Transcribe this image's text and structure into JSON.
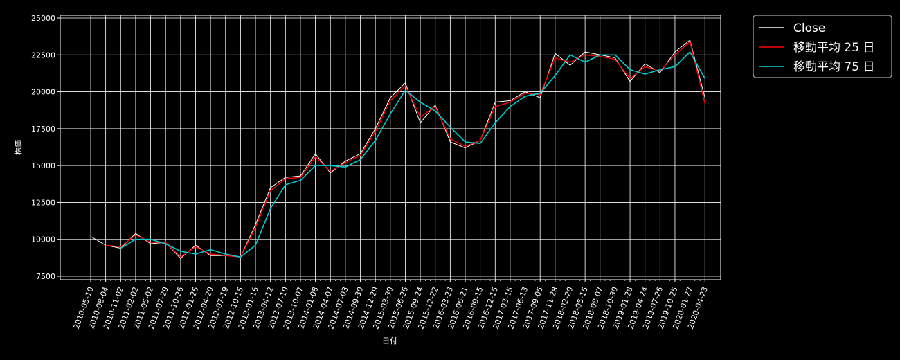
{
  "chart_data": {
    "type": "line",
    "title": "",
    "xlabel": "日付",
    "ylabel": "株価",
    "ylim": [
      7500,
      25000
    ],
    "yticks": [
      7500,
      10000,
      12500,
      15000,
      17500,
      20000,
      22500,
      25000
    ],
    "grid": true,
    "legend_position": "outside-top-right",
    "x_dates": [
      "2010-05-10",
      "2010-08-04",
      "2010-11-02",
      "2011-02-02",
      "2011-05-02",
      "2011-07-29",
      "2011-10-26",
      "2012-01-26",
      "2012-04-20",
      "2012-07-19",
      "2012-10-15",
      "2013-01-16",
      "2013-04-12",
      "2013-07-10",
      "2013-10-07",
      "2014-01-08",
      "2014-04-07",
      "2014-07-03",
      "2014-09-30",
      "2014-12-29",
      "2015-03-30",
      "2015-06-26",
      "2015-09-24",
      "2015-12-22",
      "2016-03-23",
      "2016-06-21",
      "2016-09-15",
      "2016-12-15",
      "2017-03-15",
      "2017-06-13",
      "2017-09-05",
      "2017-11-28",
      "2018-02-20",
      "2018-05-15",
      "2018-08-07",
      "2018-10-30",
      "2019-01-28",
      "2019-04-24",
      "2019-07-26",
      "2019-10-25",
      "2020-01-27",
      "2020-04-23"
    ],
    "series": [
      {
        "name": "Close",
        "color": "#ffffff",
        "values": [
          10200,
          9600,
          9400,
          10400,
          9700,
          9800,
          8700,
          9600,
          8900,
          8900,
          8800,
          11000,
          13500,
          14200,
          14300,
          15800,
          14500,
          15300,
          15800,
          17500,
          19600,
          20600,
          17900,
          19100,
          16600,
          16200,
          16700,
          19300,
          19400,
          20000,
          19600,
          22600,
          21800,
          22700,
          22500,
          22300,
          20700,
          21900,
          21300,
          22700,
          23500,
          19600
        ]
      },
      {
        "name": "移動平均 25 日",
        "color": "#ff0000",
        "values": [
          null,
          9600,
          9500,
          10300,
          9800,
          9800,
          8800,
          9500,
          9000,
          8900,
          8800,
          10800,
          13300,
          14100,
          14200,
          15600,
          14600,
          15200,
          15700,
          17300,
          19400,
          20400,
          18300,
          19000,
          16800,
          16300,
          16700,
          19000,
          19300,
          19900,
          19800,
          22300,
          22000,
          22500,
          22400,
          22200,
          20900,
          21700,
          21400,
          22500,
          23400,
          19200
        ]
      },
      {
        "name": "移動平均 75 日",
        "color": "#00ced1",
        "values": [
          null,
          null,
          9400,
          10000,
          10000,
          9700,
          9200,
          9000,
          9300,
          9000,
          8800,
          9600,
          12100,
          13700,
          14000,
          15000,
          15000,
          14900,
          15400,
          16700,
          18500,
          20100,
          19300,
          18700,
          17600,
          16600,
          16500,
          17900,
          19000,
          19700,
          19900,
          21100,
          22500,
          22000,
          22500,
          22500,
          21500,
          21200,
          21500,
          21700,
          22700,
          20900
        ]
      }
    ]
  }
}
